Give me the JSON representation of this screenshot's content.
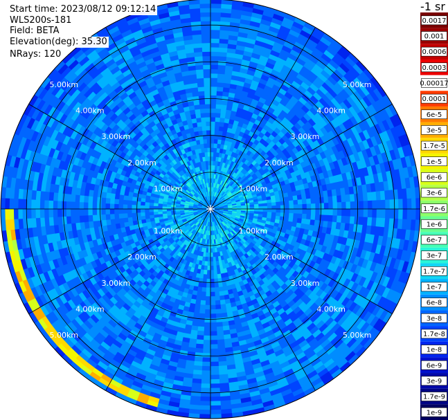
{
  "header": {
    "start_time": "Start time: 2023/08/12 09:12:14",
    "instrument": "WLS200s-181",
    "field": "Field: BETA",
    "elevation": "Elevation(deg): 35.30",
    "nrays": "NRays: 120"
  },
  "legend": {
    "unit": "-1 sr",
    "bins": [
      {
        "label": "0.0017",
        "color": "#7a0000"
      },
      {
        "label": "0.001",
        "color": "#9a0000"
      },
      {
        "label": "0.0006",
        "color": "#c20000"
      },
      {
        "label": "0.0003",
        "color": "#ec0000"
      },
      {
        "label": "0.00017",
        "color": "#ffffff"
      },
      {
        "label": "0.0001",
        "color": "#ff3b00"
      },
      {
        "label": "6e-5",
        "color": "#ff7a00"
      },
      {
        "label": "3e-5",
        "color": "#ffad00"
      },
      {
        "label": "1.7e-5",
        "color": "#ffd800"
      },
      {
        "label": "1e-5",
        "color": "#f4f400"
      },
      {
        "label": "6e-6",
        "color": "#d8ff1a"
      },
      {
        "label": "3e-6",
        "color": "#b4ff44"
      },
      {
        "label": "1.7e-6",
        "color": "#8dff6a"
      },
      {
        "label": "1e-6",
        "color": "#66ff90"
      },
      {
        "label": "6e-7",
        "color": "#45ffb5"
      },
      {
        "label": "3e-7",
        "color": "#28f5d8"
      },
      {
        "label": "1.7e-7",
        "color": "#12d6f4"
      },
      {
        "label": "1e-7",
        "color": "#00b2ff"
      },
      {
        "label": "6e-8",
        "color": "#008cff"
      },
      {
        "label": "3e-8",
        "color": "#0066ff"
      },
      {
        "label": "1.7e-8",
        "color": "#0044ff"
      },
      {
        "label": "1e-8",
        "color": "#0024ee"
      },
      {
        "label": "6e-9",
        "color": "#0010cc"
      },
      {
        "label": "3e-9",
        "color": "#0008a8"
      },
      {
        "label": "1.7e-9",
        "color": "#000484"
      },
      {
        "label": "1e-9",
        "color": "#000060"
      }
    ]
  },
  "chart_data": {
    "type": "heatmap",
    "projection": "polar-ppi",
    "range_rings_km": [
      1,
      2,
      3,
      4,
      5
    ],
    "range_labels": [
      "1.00km",
      "2.00km",
      "3.00km",
      "4.00km",
      "5.00km"
    ],
    "max_range_km": 5.7,
    "spoke_step_deg": 30,
    "nrays": 120,
    "colormap_levels": [
      1e-09,
      1.7e-09,
      3e-09,
      6e-09,
      1e-08,
      1.7e-08,
      3e-08,
      6e-08,
      1e-07,
      1.7e-07,
      3e-07,
      6e-07,
      1e-06,
      1.7e-06,
      3e-06,
      6e-06,
      1e-05,
      1.7e-05,
      3e-05,
      6e-05,
      0.0001,
      0.00017,
      0.0003,
      0.0006,
      0.001,
      0.0017
    ],
    "range_profile": [
      {
        "range_km": 0.0,
        "beta": 6e-08
      },
      {
        "range_km": 0.6,
        "beta": 1.7e-07
      },
      {
        "range_km": 1.2,
        "beta": 1e-07
      },
      {
        "range_km": 2.0,
        "beta": 6e-08
      },
      {
        "range_km": 3.0,
        "beta": 6e-08
      },
      {
        "range_km": 4.0,
        "beta": 6e-08
      },
      {
        "range_km": 5.0,
        "beta": 6e-08
      },
      {
        "range_km": 5.7,
        "beta": 3e-08
      }
    ],
    "features": [
      {
        "azimuth_from_deg": 195,
        "azimuth_to_deg": 270,
        "range_from_km": 5.3,
        "range_to_km": 5.55,
        "beta": 1e-05,
        "peak_beta": 3e-05
      }
    ]
  }
}
